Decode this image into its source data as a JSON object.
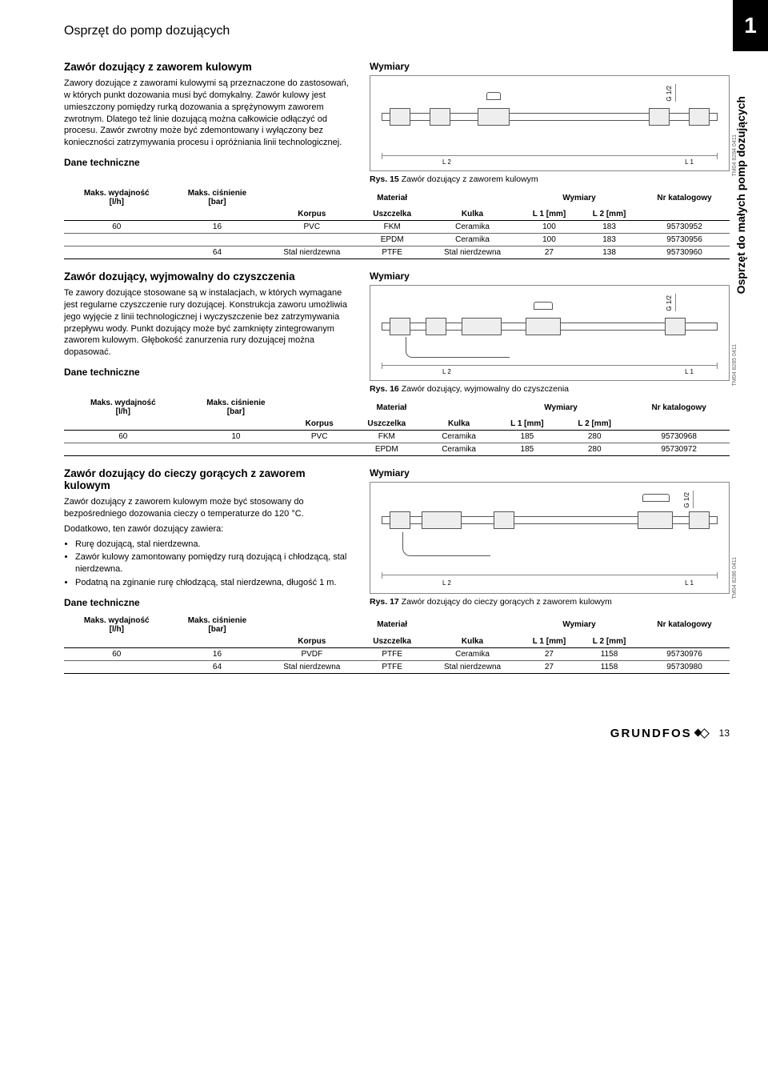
{
  "chapter_num": "1",
  "page_title": "Osprzęt do pomp dozujących",
  "side_tab": "Osprzęt do małych pomp dozujących",
  "footer": {
    "brand": "GRUNDFOS",
    "page": "13"
  },
  "dane_tech_label": "Dane techniczne",
  "wymiary_label": "Wymiary",
  "table_headers": {
    "flow": "Maks. wydajność",
    "flow_unit": "[l/h]",
    "press": "Maks. ciśnienie",
    "press_unit": "[bar]",
    "material": "Materiał",
    "dims": "Wymiary",
    "cat": "Nr katalogowy",
    "korpus": "Korpus",
    "uszczelka": "Uszczelka",
    "kulka": "Kulka",
    "l1": "L 1 [mm]",
    "l2": "L 2 [mm]"
  },
  "fig_labels": {
    "g12": "G 1/2",
    "l1": "L 1",
    "l2": "L 2"
  },
  "sec1": {
    "title": "Zawór dozujący z zaworem kulowym",
    "body": "Zawory dozujące z zaworami kulowymi są przeznaczone do zastosowań, w których punkt dozowania musi być domykalny. Zawór kulowy jest umieszczony pomiędzy rurką dozowania a sprężynowym zaworem zwrotnym. Dlatego też linie dozującą można całkowicie odłączyć od procesu. Zawór zwrotny może być zdemontowany i wyłączony bez konieczności zatrzymywania procesu i opróżniania linii technologicznej.",
    "fig_no": "Rys. 15",
    "fig_cap": "Zawór dozujący z zaworem kulowym",
    "tm": "TM04 8284 0411",
    "rows": [
      {
        "flow": "60",
        "press": "16",
        "korpus": "PVC",
        "uszcz": "FKM",
        "kulka": "Ceramika",
        "l1": "100",
        "l2": "183",
        "cat": "95730952"
      },
      {
        "flow": "",
        "press": "",
        "korpus": "",
        "uszcz": "EPDM",
        "kulka": "Ceramika",
        "l1": "100",
        "l2": "183",
        "cat": "95730956"
      },
      {
        "flow": "",
        "press": "64",
        "korpus": "Stal nierdzewna",
        "uszcz": "PTFE",
        "kulka": "Stal nierdzewna",
        "l1": "27",
        "l2": "138",
        "cat": "95730960"
      }
    ]
  },
  "sec2": {
    "title": "Zawór dozujący, wyjmowalny do czyszczenia",
    "body": "Te zawory dozujące stosowane są w instalacjach, w których wymagane jest regularne czyszczenie rury dozującej. Konstrukcja zaworu umożliwia jego wyjęcie z linii technologicznej i wyczyszczenie bez zatrzymywania przepływu wody. Punkt dozujący może być zamknięty zintegrowanym zaworem kulowym. Głębokość zanurzenia rury dozującej można dopasować.",
    "fig_no": "Rys. 16",
    "fig_cap": "Zawór dozujący, wyjmowalny do czyszczenia",
    "tm": "TM04 8285 0411",
    "rows": [
      {
        "flow": "60",
        "press": "10",
        "korpus": "PVC",
        "uszcz": "FKM",
        "kulka": "Ceramika",
        "l1": "185",
        "l2": "280",
        "cat": "95730968"
      },
      {
        "flow": "",
        "press": "",
        "korpus": "",
        "uszcz": "EPDM",
        "kulka": "Ceramika",
        "l1": "185",
        "l2": "280",
        "cat": "95730972"
      }
    ]
  },
  "sec3": {
    "title": "Zawór dozujący do cieczy gorących z zaworem kulowym",
    "body": "Zawór dozujący z zaworem kulowym może być stosowany do bezpośredniego dozowania cieczy o temperaturze do 120 °C.",
    "body2": "Dodatkowo, ten zawór dozujący zawiera:",
    "bullets": [
      "Rurę dozującą, stal nierdzewna.",
      "Zawór kulowy zamontowany pomiędzy rurą dozującą i chłodzącą, stal nierdzewna.",
      "Podatną na zginanie rurę chłodzącą, stal nierdzewna, długość 1 m."
    ],
    "fig_no": "Rys. 17",
    "fig_cap": "Zawór dozujący do cieczy gorących z zaworem kulowym",
    "tm": "TM04 8286 0411",
    "rows": [
      {
        "flow": "60",
        "press": "16",
        "korpus": "PVDF",
        "uszcz": "PTFE",
        "kulka": "Ceramika",
        "l1": "27",
        "l2": "1158",
        "cat": "95730976"
      },
      {
        "flow": "",
        "press": "64",
        "korpus": "Stal nierdzewna",
        "uszcz": "PTFE",
        "kulka": "Stal nierdzewna",
        "l1": "27",
        "l2": "1158",
        "cat": "95730980"
      }
    ]
  }
}
